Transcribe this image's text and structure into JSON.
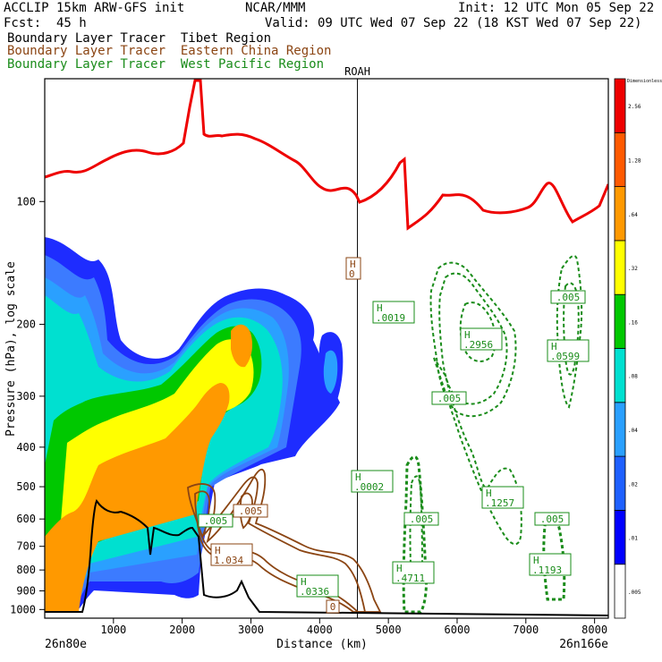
{
  "header": {
    "model": "ACCLIP 15km ARW-GFS init",
    "center": "NCAR/MMM",
    "init": "Init: 12 UTC Mon 05 Sep 22",
    "fcst": "Fcst:  45 h",
    "valid": "Valid: 09 UTC Wed 07 Sep 22 (18 KST Wed 07 Sep 22)",
    "legend": [
      {
        "label": "Boundary Layer Tracer  Tibet Region",
        "color": "#000000"
      },
      {
        "label": "Boundary Layer Tracer  Eastern China Region",
        "color": "#8b4513"
      },
      {
        "label": "Boundary Layer Tracer  West Pacific Region",
        "color": "#1a8c1a"
      }
    ]
  },
  "chart_data": {
    "type": "contour",
    "xlabel": "Distance (km)",
    "ylabel": "Pressure (hPa), log scale",
    "x_ticks": [
      1000,
      2000,
      3000,
      4000,
      5000,
      6000,
      7000,
      8000
    ],
    "y_ticks": [
      100,
      200,
      300,
      400,
      500,
      600,
      700,
      800,
      900,
      1000
    ],
    "xlim": [
      0,
      8200
    ],
    "ylim_hpa": [
      1050,
      50
    ],
    "y_scale": "log",
    "x_start_label": "26n80e",
    "x_end_label": "26n166e",
    "marker": {
      "label": "ROAH",
      "x_km": 4550
    },
    "colorbar": {
      "title": "Dimensionless",
      "levels": [
        ".005",
        ".01",
        ".02",
        ".04",
        ".08",
        ".16",
        ".32",
        ".64",
        "1.28",
        "2.56"
      ],
      "colors": [
        "#ffffff",
        "#0000ff",
        "#1e60ff",
        "#2aa0ff",
        "#00e0d0",
        "#00c800",
        "#ffff00",
        "#ff9900",
        "#ff5a00",
        "#ee0000"
      ]
    },
    "tropopause_color": "#ee0000",
    "terrain_color": "#000000",
    "labels": [
      {
        "text": "H",
        "value": "0",
        "x": 395,
        "y": 300,
        "color": "#8b4513"
      },
      {
        "text": "H",
        "value": ".0019",
        "x": 440,
        "y": 349,
        "color": "#1a8c1a"
      },
      {
        "text": "H",
        "value": ".2956",
        "x": 538,
        "y": 379,
        "color": "#1a8c1a"
      },
      {
        "text": ".005",
        "value": "",
        "x": 635,
        "y": 332,
        "color": "#1a8c1a"
      },
      {
        "text": "H",
        "value": ".0599",
        "x": 635,
        "y": 392,
        "color": "#1a8c1a"
      },
      {
        "text": ".005",
        "value": "",
        "x": 502,
        "y": 445,
        "color": "#1a8c1a"
      },
      {
        "text": "H",
        "value": ".0002",
        "x": 416,
        "y": 538,
        "color": "#1a8c1a"
      },
      {
        "text": "H",
        "value": ".1257",
        "x": 562,
        "y": 556,
        "color": "#1a8c1a"
      },
      {
        "text": ".005",
        "value": "",
        "x": 280,
        "y": 571,
        "color": "#8b4513"
      },
      {
        "text": ".005",
        "value": "",
        "x": 241,
        "y": 582,
        "color": "#1a8c1a"
      },
      {
        "text": ".005",
        "value": "",
        "x": 471,
        "y": 580,
        "color": "#1a8c1a"
      },
      {
        "text": ".005",
        "value": "",
        "x": 617,
        "y": 580,
        "color": "#1a8c1a"
      },
      {
        "text": "H",
        "value": "1.034",
        "x": 259,
        "y": 620,
        "color": "#8b4513"
      },
      {
        "text": "H",
        "value": ".1193",
        "x": 615,
        "y": 631,
        "color": "#1a8c1a"
      },
      {
        "text": "H",
        "value": ".4711",
        "x": 462,
        "y": 640,
        "color": "#1a8c1a"
      },
      {
        "text": "H",
        "value": ".0336",
        "x": 355,
        "y": 655,
        "color": "#1a8c1a"
      },
      {
        "text": "0",
        "value": "",
        "x": 372,
        "y": 678,
        "color": "#8b4513"
      }
    ]
  }
}
